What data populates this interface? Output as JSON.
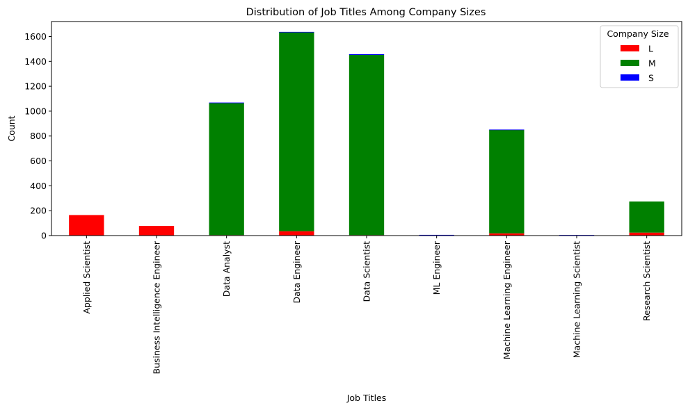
{
  "chart_data": {
    "type": "bar",
    "stacked": true,
    "title": "Distribution of Job Titles Among Company Sizes",
    "xlabel": "Job Titles",
    "ylabel": "Count",
    "ylim": [
      0,
      1720
    ],
    "yticks": [
      0,
      200,
      400,
      600,
      800,
      1000,
      1200,
      1400,
      1600
    ],
    "categories": [
      "Applied Scientist",
      "Business Intelligence Engineer",
      "Data Analyst",
      "Data Engineer",
      "Data Scientist",
      "ML Engineer",
      "Machine Learning Engineer",
      "Machine Learning Scientist",
      "Research Scientist"
    ],
    "series": [
      {
        "name": "L",
        "color": "#ff0000",
        "values": [
          165,
          78,
          4,
          35,
          4,
          0,
          18,
          0,
          24
        ]
      },
      {
        "name": "M",
        "color": "#008000",
        "values": [
          0,
          0,
          1060,
          1600,
          1448,
          0,
          832,
          0,
          250
        ]
      },
      {
        "name": "S",
        "color": "#0000ff",
        "values": [
          0,
          0,
          5,
          2,
          6,
          6,
          2,
          5,
          0
        ]
      }
    ],
    "grid": false,
    "legend": {
      "title": "Company Size",
      "placement": "top-right"
    }
  }
}
